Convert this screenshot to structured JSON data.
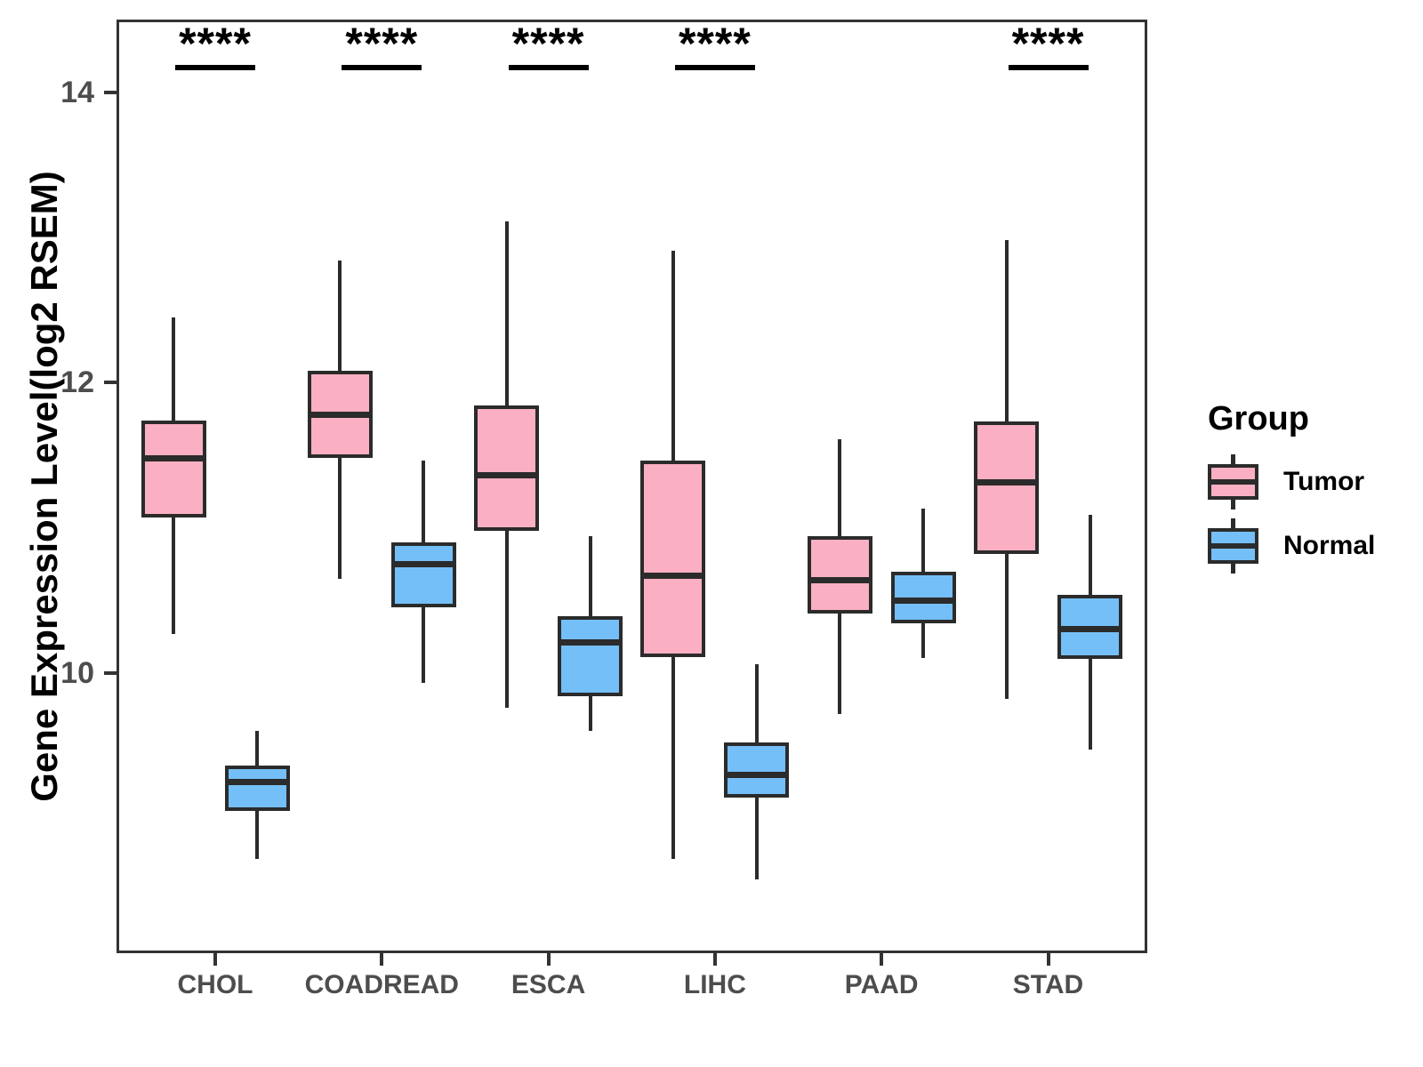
{
  "chart_data": {
    "type": "grouped_boxplot",
    "title": "",
    "ylabel": "Gene Expression Level(log2 RSEM)",
    "xlabel": "",
    "categories": [
      "CHOL",
      "COADREAD",
      "ESCA",
      "LIHC",
      "PAAD",
      "STAD"
    ],
    "y_ticks": [
      14,
      12,
      10
    ],
    "y_range": [
      8.07,
      14.5
    ],
    "grid": false,
    "legend_position": "right",
    "series": [
      {
        "name": "Tumor",
        "color": "#FBAFC2",
        "boxes": [
          {
            "low": 10.27,
            "q1": 11.07,
            "median": 11.48,
            "q3": 11.74,
            "high": 12.45
          },
          {
            "low": 10.65,
            "q1": 11.48,
            "median": 11.78,
            "q3": 12.08,
            "high": 12.84
          },
          {
            "low": 9.76,
            "q1": 10.98,
            "median": 11.36,
            "q3": 11.84,
            "high": 13.11
          },
          {
            "low": 8.72,
            "q1": 10.11,
            "median": 10.67,
            "q3": 11.46,
            "high": 12.91
          },
          {
            "low": 9.72,
            "q1": 10.41,
            "median": 10.64,
            "q3": 10.94,
            "high": 11.61
          },
          {
            "low": 9.82,
            "q1": 10.82,
            "median": 11.31,
            "q3": 11.73,
            "high": 12.98
          }
        ]
      },
      {
        "name": "Normal",
        "color": "#74BFF7",
        "boxes": [
          {
            "low": 8.72,
            "q1": 9.05,
            "median": 9.25,
            "q3": 9.36,
            "high": 9.6
          },
          {
            "low": 9.93,
            "q1": 10.45,
            "median": 10.75,
            "q3": 10.9,
            "high": 11.46
          },
          {
            "low": 9.6,
            "q1": 9.84,
            "median": 10.21,
            "q3": 10.39,
            "high": 10.94
          },
          {
            "low": 8.58,
            "q1": 9.14,
            "median": 9.3,
            "q3": 9.52,
            "high": 10.06
          },
          {
            "low": 10.1,
            "q1": 10.34,
            "median": 10.5,
            "q3": 10.7,
            "high": 11.13
          },
          {
            "low": 9.47,
            "q1": 10.1,
            "median": 10.3,
            "q3": 10.54,
            "high": 11.09
          }
        ]
      }
    ],
    "significance": [
      "****",
      "****",
      "****",
      "****",
      "",
      "****"
    ]
  },
  "legend": {
    "title": "Group",
    "items": [
      {
        "label": "Tumor"
      },
      {
        "label": "Normal"
      }
    ]
  }
}
